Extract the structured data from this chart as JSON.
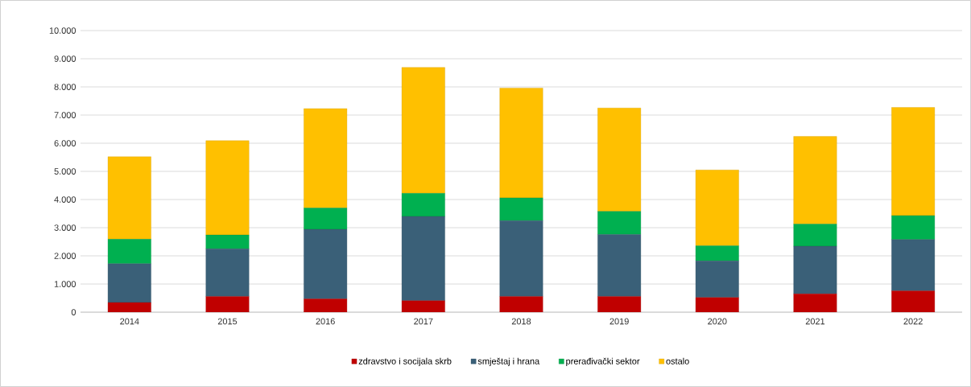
{
  "chart_data": {
    "type": "bar",
    "stacked": true,
    "categories": [
      "2014",
      "2015",
      "2016",
      "2017",
      "2018",
      "2019",
      "2020",
      "2021",
      "2022"
    ],
    "series": [
      {
        "name": "zdravstvo i socijala skrb",
        "color": "#c00000",
        "values": [
          340,
          560,
          470,
          410,
          560,
          560,
          520,
          650,
          760
        ]
      },
      {
        "name": "smještaj i hrana",
        "color": "#3a6078",
        "values": [
          1380,
          1690,
          2470,
          2990,
          2690,
          2200,
          1300,
          1690,
          1820
        ]
      },
      {
        "name": "prerađivački sektor",
        "color": "#00b050",
        "values": [
          870,
          490,
          760,
          820,
          810,
          820,
          540,
          790,
          850
        ]
      },
      {
        "name": "ostalo",
        "color": "#ffc000",
        "values": [
          2930,
          3350,
          3530,
          4470,
          3900,
          3670,
          2690,
          3110,
          3840
        ]
      }
    ],
    "ylim": [
      0,
      10000
    ],
    "yticks": [
      0,
      {
        "value": 1000,
        "label": "1.000"
      },
      {
        "value": 2000,
        "label": "2.000"
      },
      {
        "value": 3000,
        "label": "3.000"
      },
      {
        "value": 4000,
        "label": "4.000"
      },
      {
        "value": 5000,
        "label": "5.000"
      },
      {
        "value": 6000,
        "label": "6.000"
      },
      {
        "value": 7000,
        "label": "7.000"
      },
      {
        "value": 8000,
        "label": "8.000"
      },
      {
        "value": 9000,
        "label": "9.000"
      },
      {
        "value": 10000,
        "label": "10.000"
      }
    ],
    "grid": "y",
    "legend": "bottom"
  }
}
